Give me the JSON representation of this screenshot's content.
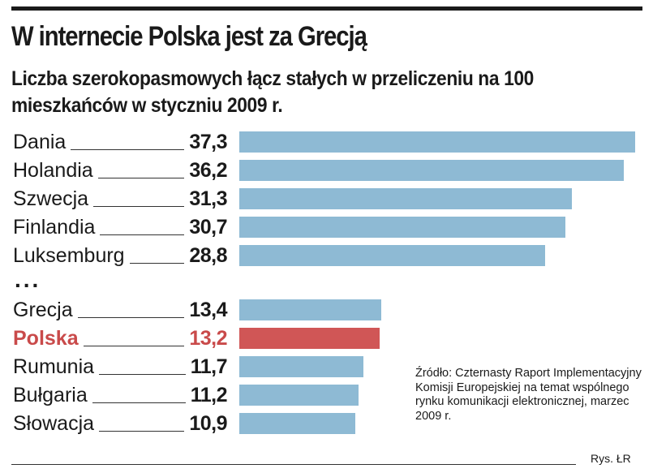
{
  "header": {
    "title": "W internecie Polska jest za Grecją",
    "subtitle": "Liczba szerokopasmowych łącz stałych w przeliczeniu na 100 mieszkańców w styczniu 2009 r."
  },
  "chart_data": {
    "type": "bar",
    "orientation": "horizontal",
    "categories": [
      "Dania",
      "Holandia",
      "Szwecja",
      "Finlandia",
      "Luksemburg",
      "Grecja",
      "Polska",
      "Rumunia",
      "Bułgaria",
      "Słowacja"
    ],
    "values": [
      37.3,
      36.2,
      31.3,
      30.7,
      28.8,
      13.4,
      13.2,
      11.7,
      11.2,
      10.9
    ],
    "value_labels": [
      "37,3",
      "36,2",
      "31,3",
      "30,7",
      "28,8",
      "13,4",
      "13,2",
      "11,7",
      "11,2",
      "10,9"
    ],
    "highlight": "Polska",
    "gap_marker": "...",
    "xlim": [
      0,
      37.3
    ],
    "grid": false,
    "legend": "none",
    "colors": {
      "bar": "#8ebad4",
      "highlight": "#d05656",
      "highlight_text": "#c94a4a"
    }
  },
  "footer": {
    "source": "Źródło: Czternasty Raport Implementacyjny Komisji Europejskiej na temat wspólnego rynku komunikacji elektronicznej, marzec 2009 r.",
    "credit": "Rys. ŁR"
  }
}
